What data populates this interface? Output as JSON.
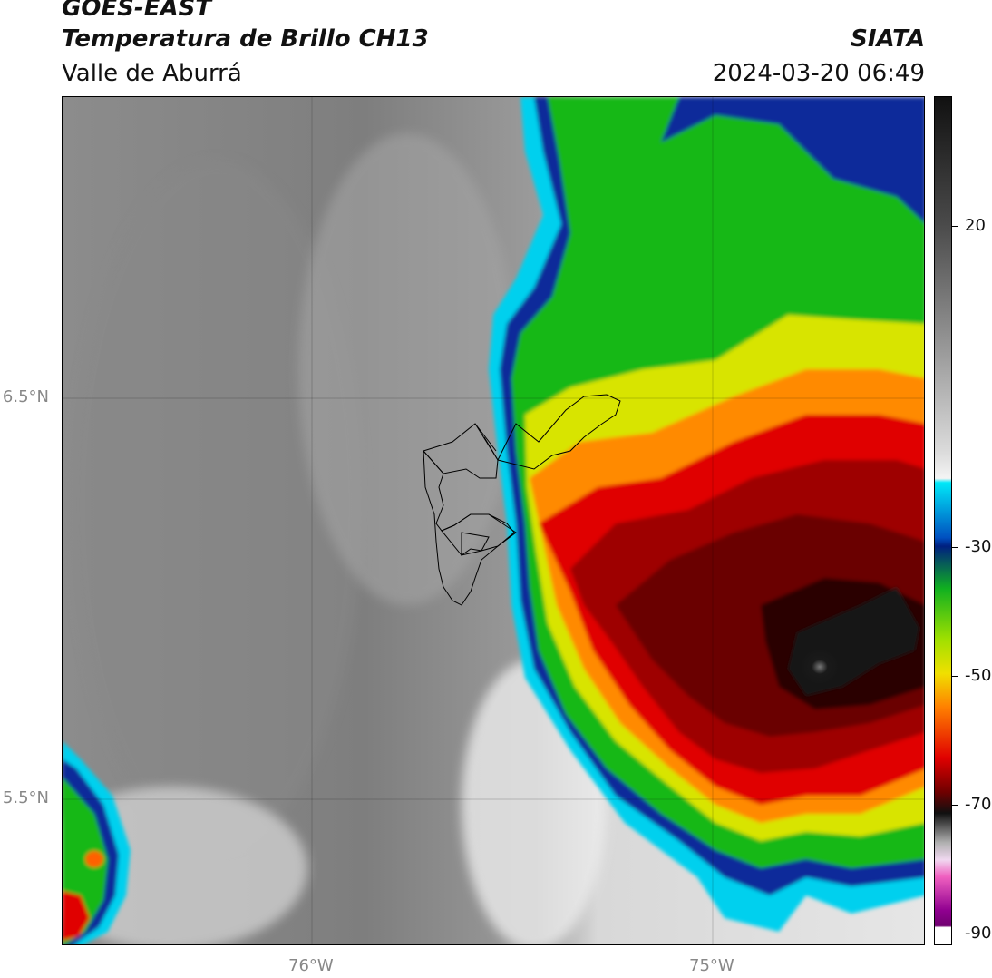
{
  "header": {
    "title_line1": "GOES-EAST",
    "title_line2": "Temperatura de Brillo CH13",
    "title_line3": "Valle de Aburrá",
    "brand": "SIATA",
    "timestamp": "2024-03-20 06:49"
  },
  "map": {
    "lat_labels": [
      "6.5°N",
      "5.5°N"
    ],
    "lon_labels": [
      "76°W",
      "75°W"
    ],
    "colors": {
      "land_clear": "#9a9a9a",
      "warm_cloud": "#e8e8e8",
      "cyan": "#00d8f0",
      "blue": "#0030a0",
      "green": "#20c020",
      "yellow": "#f0e000",
      "orange": "#ff8000",
      "red": "#e00000",
      "dark_red": "#7a0000",
      "black": "#151515"
    }
  },
  "colorbar": {
    "tick_labels": [
      "20",
      "-30",
      "-50",
      "-70",
      "-90"
    ],
    "units": ""
  }
}
